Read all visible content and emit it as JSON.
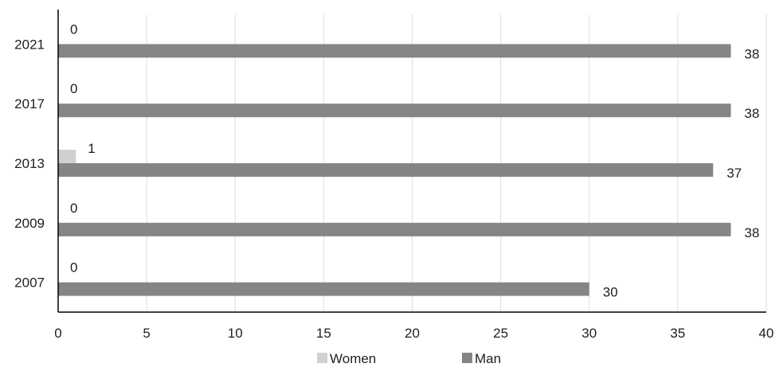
{
  "chart_data": {
    "type": "bar",
    "orientation": "horizontal",
    "categories": [
      "2021",
      "2017",
      "2013",
      "2009",
      "2007"
    ],
    "series": [
      {
        "name": "Women",
        "values": [
          0,
          0,
          1,
          0,
          0
        ],
        "color": "#d0d0d0"
      },
      {
        "name": "Man",
        "values": [
          38,
          38,
          37,
          38,
          30
        ],
        "color": "#858585"
      }
    ],
    "xlim": [
      0,
      40
    ],
    "x_ticks": [
      0,
      5,
      10,
      15,
      20,
      25,
      30,
      35,
      40
    ],
    "title": "",
    "xlabel": "",
    "ylabel": "",
    "grid": "vertical",
    "legend_position": "bottom"
  }
}
